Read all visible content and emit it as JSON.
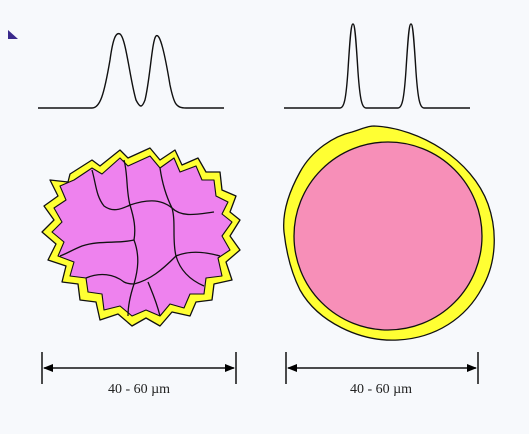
{
  "corner_marker_icon": "triangle-marker-icon",
  "left_particle": {
    "dimension_label": "40 - 60 µm",
    "colors": {
      "core": "#ee82ee",
      "shell": "#ffff33",
      "outline": "#111111"
    }
  },
  "right_particle": {
    "dimension_label": "40 - 60 µm",
    "colors": {
      "core": "#f78fb8",
      "shell": "#ffff33",
      "outline": "#111111"
    }
  }
}
